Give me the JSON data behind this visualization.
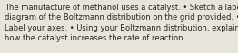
{
  "text": "The manufacture of methanol uses a catalyst. • Sketch a labelled\ndiagram of the Boltzmann distribution on the grid provided. •\nLabel your axes. • Using your Boltzmann distribution, explain\nhow the catalyst increases the rate of reaction.",
  "background_color": "#e8e4dc",
  "text_color": "#2a2520",
  "font_size": 6.0,
  "fig_width": 2.62,
  "fig_height": 0.59,
  "dpi": 100
}
